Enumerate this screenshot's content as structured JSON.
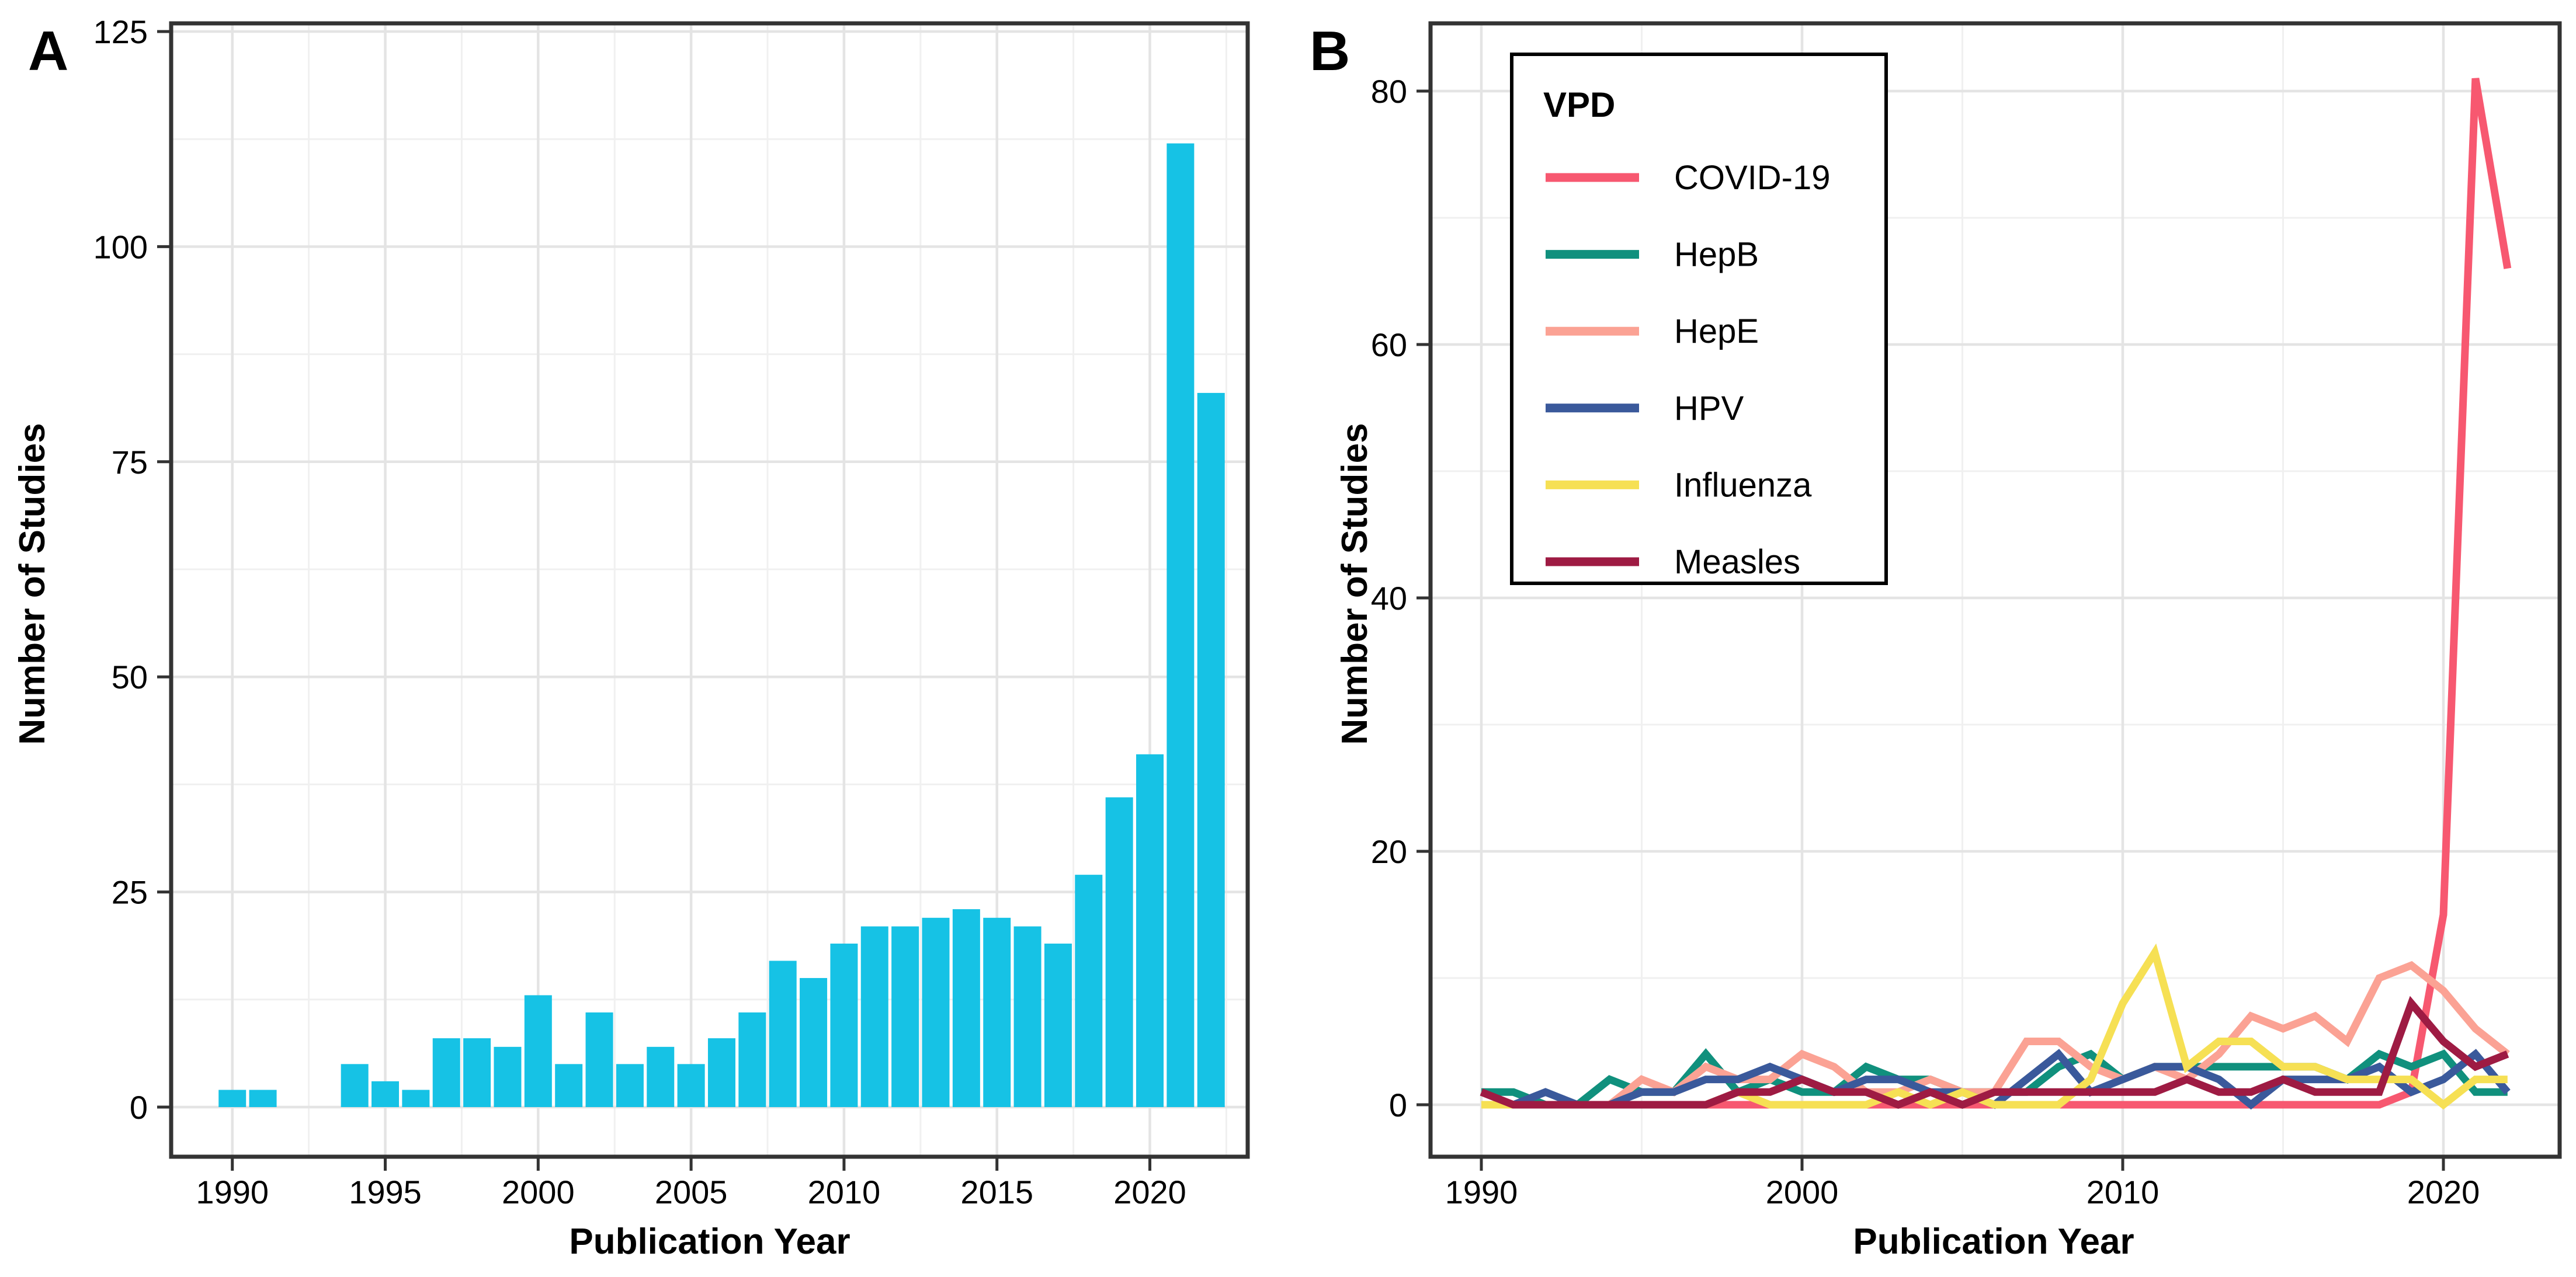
{
  "labels": {
    "panel_a_tag": "A",
    "panel_b_tag": "B",
    "x_title_a": "Publication Year",
    "x_title_b": "Publication Year",
    "y_title_a": "Number of Studies",
    "y_title_b": "Number of Studies"
  },
  "style_colors": {
    "background": "#FFFFFF",
    "panel_border": "#333333",
    "tick_mark": "#333333",
    "grid_major": "#E4E4E4",
    "grid_minor": "#F0F0F0",
    "text": "#000000",
    "bar_fill": "#16C2E5"
  },
  "chart_data": [
    {
      "type": "bar",
      "panel": "A",
      "xlabel": "Publication Year",
      "ylabel": "Number of Studies",
      "bar_color": "#16C2E5",
      "ylim": [
        0,
        125
      ],
      "yticks": [
        0,
        25,
        50,
        75,
        100,
        125
      ],
      "xticks": [
        1990,
        1995,
        2000,
        2005,
        2010,
        2015,
        2020
      ],
      "years": [
        1990,
        1991,
        1992,
        1993,
        1994,
        1995,
        1996,
        1997,
        1998,
        1999,
        2000,
        2001,
        2002,
        2003,
        2004,
        2005,
        2006,
        2007,
        2008,
        2009,
        2010,
        2011,
        2012,
        2013,
        2014,
        2015,
        2016,
        2017,
        2018,
        2019,
        2020,
        2021,
        2022
      ],
      "values": [
        2,
        2,
        0,
        0,
        5,
        3,
        2,
        8,
        8,
        7,
        13,
        5,
        11,
        5,
        7,
        5,
        8,
        11,
        17,
        15,
        19,
        21,
        21,
        22,
        23,
        22,
        21,
        19,
        27,
        36,
        41,
        112,
        83
      ]
    },
    {
      "type": "line",
      "panel": "B",
      "xlabel": "Publication Year",
      "ylabel": "Number of Studies",
      "legend_title": "VPD",
      "legend_position": "top-left-inside",
      "ylim": [
        0,
        80
      ],
      "yticks": [
        0,
        20,
        40,
        60,
        80
      ],
      "xticks": [
        1990,
        2000,
        2010,
        2020
      ],
      "years": [
        1990,
        1991,
        1992,
        1993,
        1994,
        1995,
        1996,
        1997,
        1998,
        1999,
        2000,
        2001,
        2002,
        2003,
        2004,
        2005,
        2006,
        2007,
        2008,
        2009,
        2010,
        2011,
        2012,
        2013,
        2014,
        2015,
        2016,
        2017,
        2018,
        2019,
        2020,
        2021,
        2022
      ],
      "series": [
        {
          "name": "COVID-19",
          "color": "#F75870",
          "values": [
            0,
            0,
            0,
            0,
            0,
            0,
            0,
            0,
            0,
            0,
            0,
            0,
            0,
            0,
            0,
            0,
            0,
            0,
            0,
            0,
            0,
            0,
            0,
            0,
            0,
            0,
            0,
            0,
            0,
            1,
            15,
            81,
            66
          ]
        },
        {
          "name": "HepB",
          "color": "#10907D",
          "values": [
            1,
            1,
            0,
            0,
            2,
            1,
            1,
            4,
            1,
            2,
            1,
            1,
            3,
            2,
            2,
            1,
            1,
            1,
            3,
            4,
            2,
            3,
            3,
            3,
            3,
            3,
            3,
            2,
            4,
            3,
            4,
            1,
            1
          ]
        },
        {
          "name": "HepE",
          "color": "#FBA294",
          "values": [
            0,
            0,
            0,
            0,
            0,
            2,
            1,
            3,
            2,
            2,
            4,
            3,
            1,
            1,
            2,
            1,
            1,
            5,
            5,
            3,
            2,
            3,
            2,
            4,
            7,
            6,
            7,
            5,
            10,
            11,
            9,
            6,
            4
          ]
        },
        {
          "name": "HPV",
          "color": "#3A599B",
          "values": [
            0,
            0,
            1,
            0,
            0,
            1,
            1,
            2,
            2,
            3,
            2,
            1,
            2,
            2,
            1,
            1,
            0,
            2,
            4,
            1,
            2,
            3,
            3,
            2,
            0,
            2,
            2,
            2,
            3,
            1,
            2,
            4,
            1
          ]
        },
        {
          "name": "Influenza",
          "color": "#F6E054",
          "values": [
            0,
            0,
            0,
            0,
            0,
            0,
            0,
            0,
            1,
            0,
            0,
            0,
            0,
            1,
            0,
            1,
            0,
            0,
            0,
            2,
            8,
            12,
            3,
            5,
            5,
            3,
            3,
            2,
            2,
            2,
            0,
            2,
            2
          ]
        },
        {
          "name": "Measles",
          "color": "#9E1B43",
          "values": [
            1,
            0,
            0,
            0,
            0,
            0,
            0,
            0,
            1,
            1,
            2,
            1,
            1,
            0,
            1,
            0,
            1,
            1,
            1,
            1,
            1,
            1,
            2,
            1,
            1,
            2,
            1,
            1,
            1,
            8,
            5,
            3,
            4
          ]
        }
      ]
    }
  ]
}
